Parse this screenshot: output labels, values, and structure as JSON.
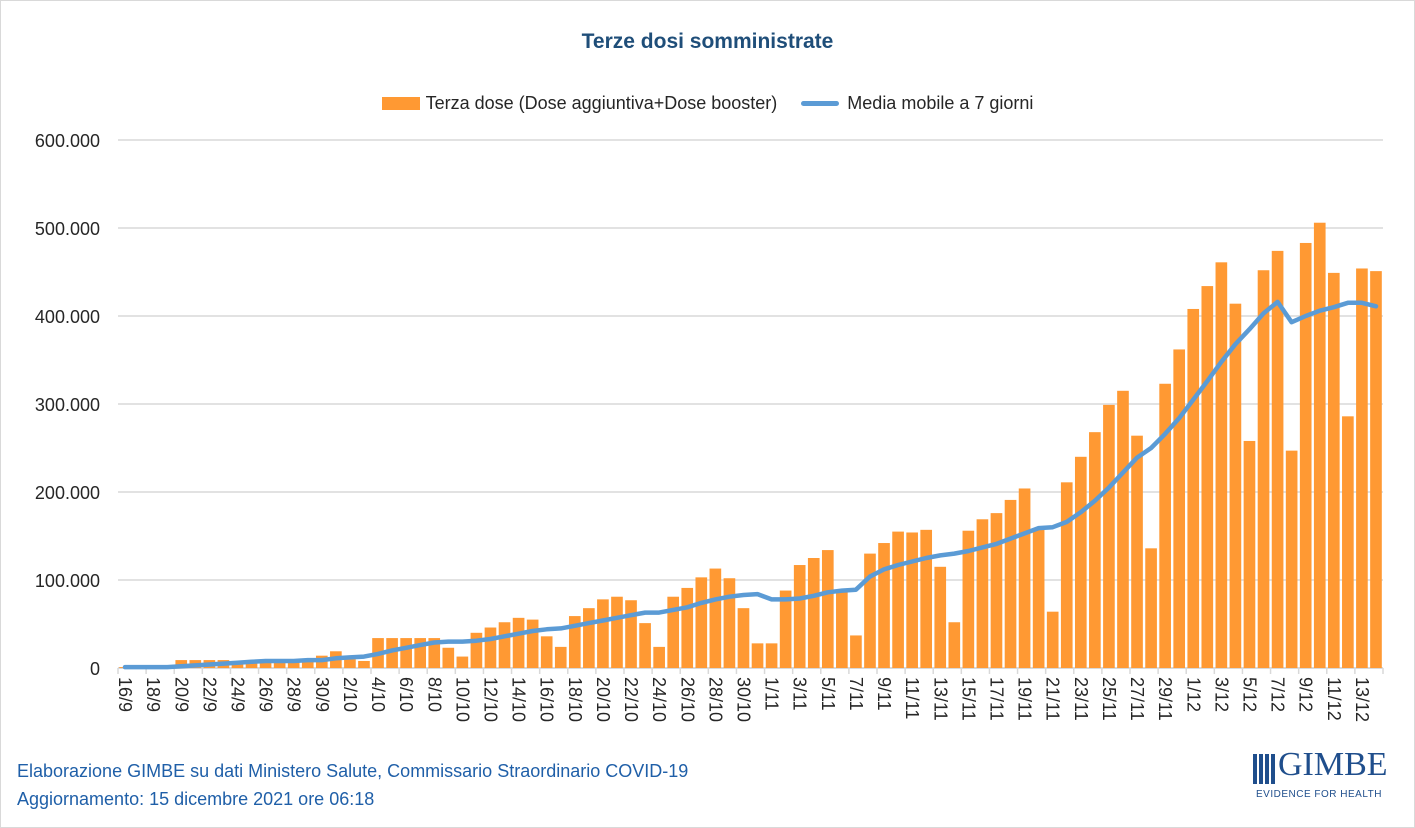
{
  "chart_data": {
    "type": "bar",
    "title": "Terze dosi somministrate",
    "xlabel": "",
    "ylabel": "",
    "ylim": [
      0,
      600000
    ],
    "yticks": [
      "0",
      "100.000",
      "200.000",
      "300.000",
      "400.000",
      "500.000",
      "600.000"
    ],
    "grid": true,
    "legend_placement": "top",
    "categories": [
      "16/9",
      "17/9",
      "18/9",
      "19/9",
      "20/9",
      "21/9",
      "22/9",
      "23/9",
      "24/9",
      "25/9",
      "26/9",
      "27/9",
      "28/9",
      "29/9",
      "30/9",
      "1/10",
      "2/10",
      "3/10",
      "4/10",
      "5/10",
      "6/10",
      "7/10",
      "8/10",
      "9/10",
      "10/10",
      "11/10",
      "12/10",
      "13/10",
      "14/10",
      "15/10",
      "16/10",
      "17/10",
      "18/10",
      "19/10",
      "20/10",
      "21/10",
      "22/10",
      "23/10",
      "24/10",
      "25/10",
      "26/10",
      "27/10",
      "28/10",
      "29/10",
      "30/10",
      "31/10",
      "1/11",
      "2/11",
      "3/11",
      "4/11",
      "5/11",
      "6/11",
      "7/11",
      "8/11",
      "9/11",
      "10/11",
      "11/11",
      "12/11",
      "13/11",
      "14/11",
      "15/11",
      "16/11",
      "17/11",
      "18/11",
      "19/11",
      "20/11",
      "21/11",
      "22/11",
      "23/11",
      "24/11",
      "25/11",
      "26/11",
      "27/11",
      "28/11",
      "29/11",
      "30/11",
      "1/12",
      "2/12",
      "3/12",
      "4/12",
      "5/12",
      "6/12",
      "7/12",
      "8/12",
      "9/12",
      "10/12",
      "11/12",
      "12/12",
      "13/12",
      "14/12"
    ],
    "series": [
      {
        "name": "Terza dose (Dose aggiuntiva+Dose booster)",
        "type": "bar",
        "color": "#ff9933",
        "values": [
          1000,
          1000,
          1000,
          1000,
          9000,
          9000,
          9000,
          9000,
          8000,
          7000,
          8000,
          8000,
          8000,
          9000,
          14000,
          19000,
          10000,
          8000,
          34000,
          34000,
          34000,
          34000,
          34000,
          23000,
          13000,
          40000,
          46000,
          52000,
          57000,
          55000,
          36000,
          24000,
          59000,
          68000,
          78000,
          81000,
          77000,
          51000,
          24000,
          81000,
          91000,
          103000,
          113000,
          102000,
          68000,
          28000,
          28000,
          88000,
          117000,
          125000,
          134000,
          87000,
          37000,
          130000,
          142000,
          155000,
          154000,
          157000,
          115000,
          52000,
          156000,
          169000,
          176000,
          191000,
          204000,
          157000,
          64000,
          211000,
          240000,
          268000,
          299000,
          315000,
          264000,
          136000,
          323000,
          362000,
          408000,
          434000,
          461000,
          414000,
          258000,
          452000,
          474000,
          247000,
          483000,
          506000,
          449000,
          286000,
          454000,
          451000
        ]
      },
      {
        "name": "Media mobile a 7 giorni",
        "type": "line",
        "color": "#5b9bd5",
        "values": [
          1000,
          1000,
          1000,
          1000,
          2000,
          3000,
          4000,
          5000,
          6000,
          7000,
          8000,
          8000,
          8000,
          9000,
          9000,
          11000,
          12000,
          13000,
          16000,
          20000,
          23000,
          26000,
          29000,
          30000,
          30000,
          31000,
          33000,
          36000,
          39000,
          42000,
          44000,
          45000,
          48000,
          51000,
          54000,
          57000,
          60000,
          63000,
          63000,
          66000,
          69000,
          74000,
          78000,
          81000,
          83000,
          84000,
          78000,
          78000,
          79000,
          82000,
          86000,
          88000,
          89000,
          104000,
          112000,
          117000,
          121000,
          125000,
          128000,
          130000,
          133000,
          137000,
          141000,
          147000,
          153000,
          159000,
          160000,
          166000,
          177000,
          190000,
          205000,
          222000,
          239000,
          250000,
          266000,
          284000,
          305000,
          326000,
          348000,
          368000,
          385000,
          403000,
          416000,
          393000,
          400000,
          406000,
          410000,
          415000,
          415000,
          411000
        ]
      }
    ]
  },
  "footer": {
    "line1": "Elaborazione GIMBE su dati Ministero Salute, Commissario Straordinario COVID-19",
    "line2": "Aggiornamento: 15 dicembre 2021 ore 06:18"
  },
  "logo": {
    "name": "GIMBE",
    "tagline": "EVIDENCE FOR HEALTH"
  }
}
